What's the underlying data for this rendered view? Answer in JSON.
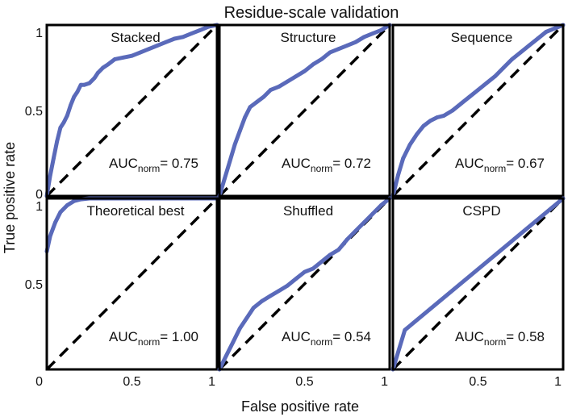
{
  "figure": {
    "title": "Residue-scale validation",
    "xlabel": "False positive rate",
    "ylabel": "True positive rate",
    "auc_label_main": "AUC",
    "auc_label_sub": "norm",
    "auc_label_eq": "= "
  },
  "style": {
    "roc_color": "#5a6aba",
    "diagonal_color": "#000000",
    "axis_color": "#000000"
  },
  "chart_data": [
    {
      "type": "line",
      "title": "Stacked",
      "auc_norm": "0.75",
      "xlim": [
        0,
        1
      ],
      "ylim": [
        0,
        1
      ],
      "x_ticks": [],
      "x_tick_labels": [],
      "y_ticks": [
        1,
        0.5,
        0
      ],
      "y_tick_labels": [
        "1",
        "0.5",
        "0"
      ],
      "series": [
        {
          "name": "ROC",
          "x": [
            0,
            0.02,
            0.04,
            0.06,
            0.08,
            0.1,
            0.12,
            0.14,
            0.16,
            0.18,
            0.2,
            0.22,
            0.25,
            0.28,
            0.3,
            0.33,
            0.36,
            0.4,
            0.45,
            0.5,
            0.55,
            0.6,
            0.65,
            0.7,
            0.75,
            0.8,
            0.85,
            0.9,
            0.95,
            1.0
          ],
          "y": [
            0,
            0.12,
            0.22,
            0.32,
            0.4,
            0.43,
            0.47,
            0.53,
            0.58,
            0.61,
            0.65,
            0.65,
            0.66,
            0.69,
            0.72,
            0.75,
            0.77,
            0.8,
            0.81,
            0.82,
            0.84,
            0.86,
            0.88,
            0.9,
            0.92,
            0.93,
            0.95,
            0.97,
            0.99,
            1.0
          ]
        },
        {
          "name": "Random",
          "x": [
            0,
            1
          ],
          "y": [
            0,
            1
          ]
        }
      ]
    },
    {
      "type": "line",
      "title": "Structure",
      "auc_norm": "0.72",
      "xlim": [
        0,
        1
      ],
      "ylim": [
        0,
        1
      ],
      "x_ticks": [],
      "x_tick_labels": [],
      "y_ticks": [],
      "y_tick_labels": [],
      "series": [
        {
          "name": "ROC",
          "x": [
            0,
            0.03,
            0.06,
            0.09,
            0.12,
            0.15,
            0.18,
            0.22,
            0.26,
            0.3,
            0.35,
            0.4,
            0.45,
            0.5,
            0.55,
            0.6,
            0.65,
            0.7,
            0.75,
            0.8,
            0.85,
            0.9,
            0.95,
            1.0
          ],
          "y": [
            0,
            0.1,
            0.2,
            0.3,
            0.38,
            0.46,
            0.52,
            0.55,
            0.58,
            0.62,
            0.64,
            0.67,
            0.7,
            0.73,
            0.77,
            0.8,
            0.84,
            0.86,
            0.88,
            0.9,
            0.93,
            0.95,
            0.97,
            1.0
          ]
        },
        {
          "name": "Random",
          "x": [
            0,
            1
          ],
          "y": [
            0,
            1
          ]
        }
      ]
    },
    {
      "type": "line",
      "title": "Sequence",
      "auc_norm": "0.67",
      "xlim": [
        0,
        1
      ],
      "ylim": [
        0,
        1
      ],
      "x_ticks": [],
      "x_tick_labels": [],
      "y_ticks": [],
      "y_tick_labels": [],
      "series": [
        {
          "name": "ROC",
          "x": [
            0,
            0.03,
            0.06,
            0.1,
            0.14,
            0.18,
            0.22,
            0.26,
            0.3,
            0.35,
            0.4,
            0.45,
            0.5,
            0.55,
            0.6,
            0.65,
            0.7,
            0.75,
            0.8,
            0.85,
            0.9,
            0.95,
            1.0
          ],
          "y": [
            0,
            0.12,
            0.22,
            0.3,
            0.36,
            0.41,
            0.44,
            0.46,
            0.47,
            0.5,
            0.54,
            0.58,
            0.62,
            0.66,
            0.7,
            0.75,
            0.8,
            0.84,
            0.88,
            0.92,
            0.96,
            0.98,
            1.0
          ]
        },
        {
          "name": "Random",
          "x": [
            0,
            1
          ],
          "y": [
            0,
            1
          ]
        }
      ]
    },
    {
      "type": "line",
      "title": "Theoretical best",
      "auc_norm": "1.00",
      "xlim": [
        0,
        1
      ],
      "ylim": [
        0,
        1
      ],
      "x_ticks": [
        0,
        0.5,
        1
      ],
      "x_tick_labels": [
        "0",
        "0.5",
        "1"
      ],
      "y_ticks": [
        1,
        0.5
      ],
      "y_tick_labels": [
        "1",
        "0.5"
      ],
      "series": [
        {
          "name": "ROC",
          "x": [
            0,
            0.02,
            0.05,
            0.08,
            0.12,
            0.16,
            0.2,
            0.25,
            1.0
          ],
          "y": [
            0.69,
            0.78,
            0.86,
            0.92,
            0.96,
            0.985,
            0.995,
            1.0,
            1.0
          ]
        },
        {
          "name": "Random",
          "x": [
            0,
            1
          ],
          "y": [
            0,
            1
          ]
        }
      ]
    },
    {
      "type": "line",
      "title": "Shuffled",
      "auc_norm": "0.54",
      "xlim": [
        0,
        1
      ],
      "ylim": [
        0,
        1
      ],
      "x_ticks": [
        0.5,
        1
      ],
      "x_tick_labels": [
        "0.5",
        "1"
      ],
      "y_ticks": [],
      "y_tick_labels": [],
      "series": [
        {
          "name": "ROC",
          "x": [
            0,
            0.04,
            0.08,
            0.12,
            0.16,
            0.2,
            0.25,
            0.3,
            0.35,
            0.4,
            0.45,
            0.5,
            0.55,
            0.6,
            0.65,
            0.7,
            0.75,
            0.8,
            0.85,
            0.9,
            0.95,
            1.0
          ],
          "y": [
            0,
            0.08,
            0.16,
            0.24,
            0.3,
            0.36,
            0.4,
            0.43,
            0.46,
            0.49,
            0.53,
            0.57,
            0.59,
            0.63,
            0.67,
            0.7,
            0.76,
            0.81,
            0.86,
            0.91,
            0.96,
            1.0
          ]
        },
        {
          "name": "Random",
          "x": [
            0,
            1
          ],
          "y": [
            0,
            1
          ]
        }
      ]
    },
    {
      "type": "line",
      "title": "CSPD",
      "auc_norm": "0.58",
      "xlim": [
        0,
        1
      ],
      "ylim": [
        0,
        1
      ],
      "x_ticks": [
        0.5,
        1
      ],
      "x_tick_labels": [
        "0.5",
        "1"
      ],
      "y_ticks": [],
      "y_tick_labels": [],
      "series": [
        {
          "name": "ROC",
          "x": [
            0,
            0.07,
            1.0
          ],
          "y": [
            0,
            0.23,
            1.0
          ]
        },
        {
          "name": "Random",
          "x": [
            0,
            1
          ],
          "y": [
            0,
            1
          ]
        }
      ]
    }
  ]
}
